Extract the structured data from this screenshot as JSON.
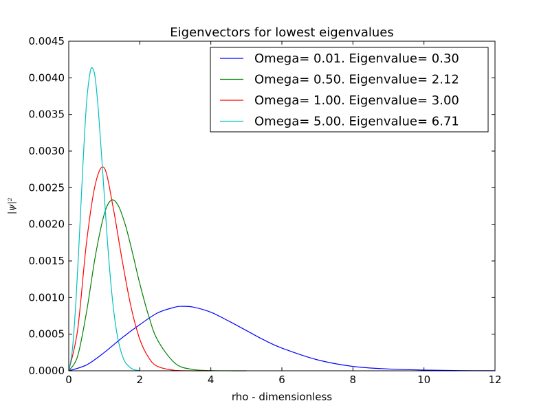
{
  "chart_data": {
    "type": "line",
    "title": "Eigenvectors for lowest eigenvalues",
    "xlabel": "rho - dimensionless",
    "ylabel": "|ψ|²",
    "xlim": [
      0,
      12
    ],
    "ylim": [
      0,
      0.0045
    ],
    "xticks": [
      "0",
      "2",
      "4",
      "6",
      "8",
      "10",
      "12"
    ],
    "yticks": [
      "0.0000",
      "0.0005",
      "0.0010",
      "0.0015",
      "0.0020",
      "0.0025",
      "0.0030",
      "0.0035",
      "0.0040",
      "0.0045"
    ],
    "grid": false,
    "legend_position": "upper-right",
    "series": [
      {
        "name": "Omega= 0.01. Eigenvalue= 0.30",
        "color": "#0000ff",
        "x": [
          0,
          0.5,
          1.0,
          1.5,
          2.0,
          2.5,
          3.0,
          3.2,
          3.5,
          4.0,
          4.5,
          5.0,
          5.5,
          6.0,
          7.0,
          8.0,
          9.0,
          10.0,
          11.0,
          12.0
        ],
        "y": [
          0,
          8e-05,
          0.00025,
          0.00045,
          0.00063,
          0.00079,
          0.00087,
          0.00088,
          0.00087,
          0.0008,
          0.00068,
          0.00055,
          0.00042,
          0.00031,
          0.00015,
          6e-05,
          2.5e-05,
          1e-05,
          3e-06,
          1e-06
        ]
      },
      {
        "name": "Omega= 0.50. Eigenvalue= 2.12",
        "color": "#008000",
        "x": [
          0,
          0.25,
          0.5,
          0.75,
          1.0,
          1.2,
          1.4,
          1.6,
          1.8,
          2.0,
          2.25,
          2.5,
          3.0,
          3.5,
          4.0,
          4.5,
          5.0
        ],
        "y": [
          0,
          0.0002,
          0.0008,
          0.00157,
          0.00214,
          0.00233,
          0.00225,
          0.00198,
          0.0016,
          0.00119,
          0.00075,
          0.00042,
          0.0001,
          1.8e-05,
          3e-06,
          4e-07,
          0
        ]
      },
      {
        "name": "Omega= 1.00. Eigenvalue= 3.00",
        "color": "#ff0000",
        "x": [
          0,
          0.25,
          0.5,
          0.75,
          1.0,
          1.25,
          1.5,
          1.75,
          2.0,
          2.25,
          2.5,
          3.0,
          3.5,
          4.0
        ],
        "y": [
          0,
          0.00056,
          0.00175,
          0.00255,
          0.00277,
          0.00223,
          0.00152,
          0.00088,
          0.00043,
          0.00018,
          6e-05,
          5e-06,
          3e-07,
          0
        ]
      },
      {
        "name": "Omega= 5.00. Eigenvalue= 6.71",
        "color": "#00bfbf",
        "x": [
          0,
          0.1,
          0.2,
          0.3,
          0.4,
          0.5,
          0.6,
          0.67,
          0.75,
          0.85,
          1.0,
          1.1,
          1.2,
          1.3,
          1.4,
          1.5,
          1.6,
          1.8,
          2.0
        ],
        "y": [
          0,
          0.00028,
          0.00093,
          0.00184,
          0.00282,
          0.00365,
          0.00407,
          0.00413,
          0.00398,
          0.00345,
          0.0024,
          0.0017,
          0.00112,
          0.00069,
          0.0004,
          0.00022,
          0.00011,
          2.2e-05,
          3e-06
        ]
      }
    ]
  }
}
